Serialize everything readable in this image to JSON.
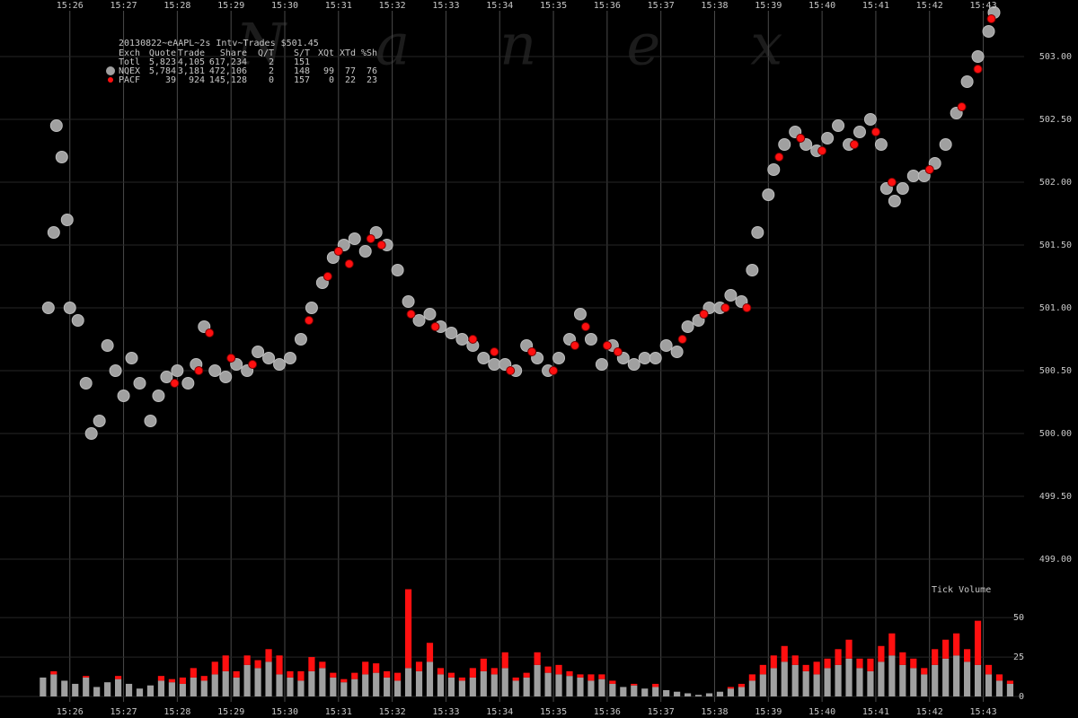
{
  "chart_data": [
    {
      "type": "scatter",
      "title": "20130822~eAAPL~2s Intv~Trades $501.45",
      "watermark": "Nanex",
      "legend_table": {
        "columns": [
          "Exch",
          "Quote",
          "Trade",
          "Share",
          "Q/T",
          "S/T",
          "XQt",
          "XTd",
          "%Sh"
        ],
        "total": {
          "label": "Totl",
          "cells": [
            "5,823",
            "4,105",
            "617,234",
            "2",
            "151"
          ]
        },
        "rows": [
          [
            "5,784",
            "3,181",
            "472,106",
            "2",
            "148",
            "99",
            "77",
            "76"
          ],
          [
            "39",
            "924",
            "145,128",
            "0",
            "157",
            "0",
            "22",
            "23"
          ]
        ]
      },
      "xlim": [
        924.7,
        943.76
      ],
      "xticks": [
        {
          "value": 926,
          "label": "15:26"
        },
        {
          "value": 927,
          "label": "15:27"
        },
        {
          "value": 928,
          "label": "15:28"
        },
        {
          "value": 929,
          "label": "15:29"
        },
        {
          "value": 930,
          "label": "15:30"
        },
        {
          "value": 931,
          "label": "15:31"
        },
        {
          "value": 932,
          "label": "15:32"
        },
        {
          "value": 933,
          "label": "15:33"
        },
        {
          "value": 934,
          "label": "15:34"
        },
        {
          "value": 935,
          "label": "15:35"
        },
        {
          "value": 936,
          "label": "15:36"
        },
        {
          "value": 937,
          "label": "15:37"
        },
        {
          "value": 938,
          "label": "15:38"
        },
        {
          "value": 939,
          "label": "15:39"
        },
        {
          "value": 940,
          "label": "15:40"
        },
        {
          "value": 941,
          "label": "15:41"
        },
        {
          "value": 942,
          "label": "15:42"
        },
        {
          "value": 943,
          "label": "15:43"
        }
      ],
      "ylim": [
        498.85,
        503.45
      ],
      "yticks": [
        {
          "value": 499,
          "label": "499.00"
        },
        {
          "value": 499.5,
          "label": "499.50"
        },
        {
          "value": 500,
          "label": "500.00"
        },
        {
          "value": 500.5,
          "label": "500.50"
        },
        {
          "value": 501,
          "label": "501.00"
        },
        {
          "value": 501.5,
          "label": "501.50"
        },
        {
          "value": 502,
          "label": "502.00"
        },
        {
          "value": 502.5,
          "label": "502.50"
        },
        {
          "value": 503,
          "label": "503.00"
        }
      ],
      "grid": true,
      "series": [
        {
          "name": "NQEX",
          "color": "#a0a0a0",
          "x": [
            925.6,
            925.7,
            925.75,
            925.85,
            925.95,
            926.0,
            926.15,
            926.3,
            926.4,
            926.55,
            926.7,
            926.85,
            927.0,
            927.15,
            927.3,
            927.5,
            927.65,
            927.8,
            928.0,
            928.2,
            928.35,
            928.5,
            928.7,
            928.9,
            929.1,
            929.3,
            929.5,
            929.7,
            929.9,
            930.1,
            930.3,
            930.5,
            930.7,
            930.9,
            931.1,
            931.3,
            931.5,
            931.7,
            931.9,
            932.1,
            932.3,
            932.5,
            932.7,
            932.9,
            933.1,
            933.3,
            933.5,
            933.7,
            933.9,
            934.1,
            934.3,
            934.5,
            934.7,
            934.9,
            935.1,
            935.3,
            935.5,
            935.7,
            935.9,
            936.1,
            936.3,
            936.5,
            936.7,
            936.9,
            937.1,
            937.3,
            937.5,
            937.7,
            937.9,
            938.1,
            938.3,
            938.5,
            938.7,
            938.8,
            939.0,
            939.1,
            939.3,
            939.5,
            939.7,
            939.9,
            940.1,
            940.3,
            940.5,
            940.7,
            940.9,
            941.1,
            941.2,
            941.35,
            941.5,
            941.7,
            941.9,
            942.1,
            942.3,
            942.5,
            942.7,
            942.9,
            943.1,
            943.2
          ],
          "values": [
            501.0,
            501.6,
            502.45,
            502.2,
            501.7,
            501.0,
            500.9,
            500.4,
            500.0,
            500.1,
            500.7,
            500.5,
            500.3,
            500.6,
            500.4,
            500.1,
            500.3,
            500.45,
            500.5,
            500.4,
            500.55,
            500.85,
            500.5,
            500.45,
            500.55,
            500.5,
            500.65,
            500.6,
            500.55,
            500.6,
            500.75,
            501.0,
            501.2,
            501.4,
            501.5,
            501.55,
            501.45,
            501.6,
            501.5,
            501.3,
            501.05,
            500.9,
            500.95,
            500.85,
            500.8,
            500.75,
            500.7,
            500.6,
            500.55,
            500.55,
            500.5,
            500.7,
            500.6,
            500.5,
            500.6,
            500.75,
            500.95,
            500.75,
            500.55,
            500.7,
            500.6,
            500.55,
            500.6,
            500.6,
            500.7,
            500.65,
            500.85,
            500.9,
            501.0,
            501.0,
            501.1,
            501.05,
            501.3,
            501.6,
            501.9,
            502.1,
            502.3,
            502.4,
            502.3,
            502.25,
            502.35,
            502.45,
            502.3,
            502.4,
            502.5,
            502.3,
            501.95,
            501.85,
            501.95,
            502.05,
            502.05,
            502.15,
            502.3,
            502.55,
            502.8,
            503.0,
            503.2,
            503.35
          ]
        },
        {
          "name": "PACF",
          "color": "#ff1010",
          "x": [
            927.95,
            928.4,
            928.6,
            929.0,
            929.4,
            930.45,
            930.8,
            931.0,
            931.2,
            931.6,
            931.8,
            932.35,
            932.8,
            933.5,
            933.9,
            934.2,
            934.6,
            935.0,
            935.4,
            935.6,
            936.0,
            936.2,
            937.4,
            937.8,
            938.2,
            938.6,
            939.2,
            939.6,
            940.0,
            940.6,
            941.0,
            941.3,
            942.0,
            942.6,
            942.9,
            943.15
          ],
          "values": [
            500.4,
            500.5,
            500.8,
            500.6,
            500.55,
            500.9,
            501.25,
            501.45,
            501.35,
            501.55,
            501.5,
            500.95,
            500.85,
            500.75,
            500.65,
            500.5,
            500.65,
            500.5,
            500.7,
            500.85,
            500.7,
            500.65,
            500.75,
            500.95,
            501.0,
            501.0,
            502.2,
            502.35,
            502.25,
            502.3,
            502.4,
            502.0,
            502.1,
            502.6,
            502.9,
            503.3
          ]
        }
      ]
    },
    {
      "type": "bar",
      "title": "Tick Volume",
      "stacked": true,
      "xlim": [
        924.7,
        943.76
      ],
      "ylim": [
        0,
        70
      ],
      "yticks": [
        0,
        25,
        50
      ],
      "x": [
        925.5,
        925.7,
        925.9,
        926.1,
        926.3,
        926.5,
        926.7,
        926.9,
        927.1,
        927.3,
        927.5,
        927.7,
        927.9,
        928.1,
        928.3,
        928.5,
        928.7,
        928.9,
        929.1,
        929.3,
        929.5,
        929.7,
        929.9,
        930.1,
        930.3,
        930.5,
        930.7,
        930.9,
        931.1,
        931.3,
        931.5,
        931.7,
        931.9,
        932.1,
        932.3,
        932.5,
        932.7,
        932.9,
        933.1,
        933.3,
        933.5,
        933.7,
        933.9,
        934.1,
        934.3,
        934.5,
        934.7,
        934.9,
        935.1,
        935.3,
        935.5,
        935.7,
        935.9,
        936.1,
        936.3,
        936.5,
        936.7,
        936.9,
        937.1,
        937.3,
        937.5,
        937.7,
        937.9,
        938.1,
        938.3,
        938.5,
        938.7,
        938.9,
        939.1,
        939.3,
        939.5,
        939.7,
        939.9,
        940.1,
        940.3,
        940.5,
        940.7,
        940.9,
        941.1,
        941.3,
        941.5,
        941.7,
        941.9,
        942.1,
        942.3,
        942.5,
        942.7,
        942.9,
        943.1,
        943.3,
        943.5
      ],
      "series": [
        {
          "name": "NQEX",
          "color": "#a0a0a0",
          "values": [
            12,
            14,
            10,
            8,
            12,
            6,
            9,
            11,
            8,
            5,
            7,
            10,
            9,
            8,
            12,
            10,
            14,
            16,
            12,
            20,
            18,
            22,
            14,
            12,
            10,
            16,
            18,
            12,
            9,
            11,
            14,
            15,
            12,
            10,
            18,
            16,
            22,
            14,
            12,
            10,
            12,
            16,
            14,
            18,
            10,
            12,
            20,
            15,
            14,
            13,
            12,
            10,
            11,
            8,
            6,
            7,
            5,
            6,
            4,
            3,
            2,
            1,
            2,
            3,
            5,
            6,
            10,
            14,
            18,
            22,
            20,
            16,
            14,
            18,
            20,
            24,
            18,
            16,
            22,
            26,
            20,
            18,
            14,
            20,
            24,
            26,
            22,
            20,
            14,
            10,
            8
          ]
        },
        {
          "name": "PACF",
          "color": "#ff1010",
          "values": [
            0,
            2,
            0,
            0,
            1,
            0,
            0,
            2,
            0,
            0,
            0,
            3,
            2,
            4,
            6,
            3,
            8,
            10,
            4,
            6,
            5,
            8,
            12,
            4,
            6,
            9,
            4,
            3,
            2,
            4,
            8,
            6,
            4,
            5,
            50,
            6,
            12,
            4,
            3,
            2,
            6,
            8,
            4,
            10,
            2,
            3,
            8,
            4,
            6,
            3,
            2,
            4,
            3,
            2,
            0,
            1,
            0,
            2,
            0,
            0,
            0,
            0,
            0,
            0,
            1,
            2,
            4,
            6,
            8,
            10,
            6,
            4,
            8,
            6,
            10,
            12,
            6,
            8,
            10,
            14,
            8,
            6,
            4,
            10,
            12,
            14,
            8,
            28,
            6,
            4,
            2
          ]
        }
      ]
    }
  ]
}
